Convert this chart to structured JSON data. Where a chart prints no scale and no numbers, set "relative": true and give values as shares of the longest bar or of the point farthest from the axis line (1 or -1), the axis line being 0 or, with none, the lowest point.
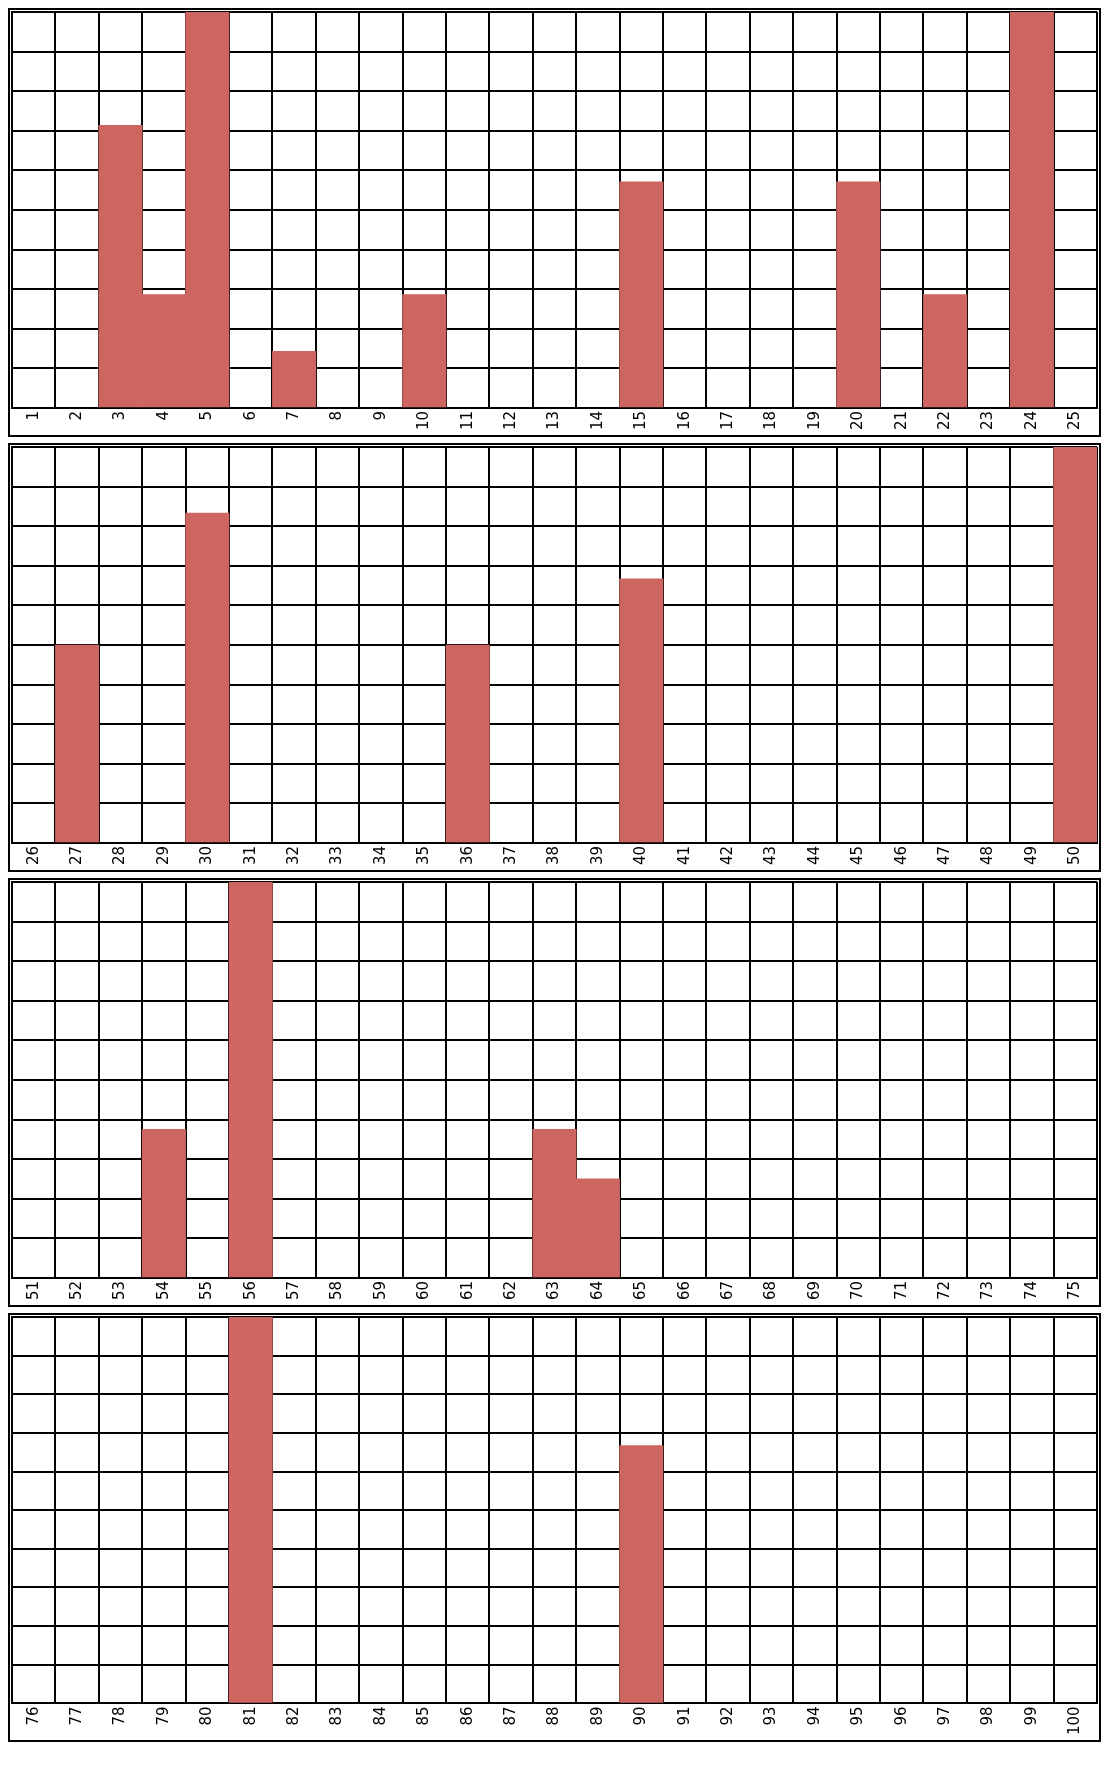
{
  "chart_data": [
    {
      "type": "bar",
      "relative": true,
      "grid": true,
      "legend": false,
      "categories": [
        "1",
        "2",
        "3",
        "4",
        "5",
        "6",
        "7",
        "8",
        "9",
        "10",
        "11",
        "12",
        "13",
        "14",
        "15",
        "16",
        "17",
        "18",
        "19",
        "20",
        "21",
        "22",
        "23",
        "24",
        "25"
      ],
      "series": [
        {
          "color": "#cd6660",
          "values": [
            null,
            null,
            0.714,
            0.286,
            1,
            null,
            0.143,
            null,
            null,
            0.286,
            null,
            null,
            null,
            null,
            0.571,
            null,
            null,
            null,
            null,
            0.571,
            null,
            0.286,
            null,
            1,
            null
          ]
        }
      ]
    },
    {
      "type": "bar",
      "relative": true,
      "grid": true,
      "legend": false,
      "categories": [
        "26",
        "27",
        "28",
        "29",
        "30",
        "31",
        "32",
        "33",
        "34",
        "35",
        "36",
        "37",
        "38",
        "39",
        "40",
        "41",
        "42",
        "43",
        "44",
        "45",
        "46",
        "47",
        "48",
        "49",
        "50"
      ],
      "series": [
        {
          "color": "#cd6660",
          "values": [
            null,
            0.5,
            null,
            null,
            0.833,
            null,
            null,
            null,
            null,
            null,
            0.5,
            null,
            null,
            null,
            0.667,
            null,
            null,
            null,
            null,
            null,
            null,
            null,
            null,
            null,
            1
          ]
        }
      ]
    },
    {
      "type": "bar",
      "relative": true,
      "grid": true,
      "legend": false,
      "categories": [
        "51",
        "52",
        "53",
        "54",
        "55",
        "56",
        "57",
        "58",
        "59",
        "60",
        "61",
        "62",
        "63",
        "64",
        "65",
        "66",
        "67",
        "68",
        "69",
        "70",
        "71",
        "72",
        "73",
        "74",
        "75"
      ],
      "series": [
        {
          "color": "#cd6660",
          "values": [
            null,
            null,
            null,
            0.375,
            null,
            1,
            null,
            null,
            null,
            null,
            null,
            null,
            0.375,
            0.25,
            null,
            null,
            null,
            null,
            null,
            null,
            null,
            null,
            null,
            null,
            null
          ]
        }
      ]
    },
    {
      "type": "bar",
      "relative": true,
      "grid": true,
      "legend": false,
      "categories": [
        "76",
        "77",
        "78",
        "79",
        "80",
        "81",
        "82",
        "83",
        "84",
        "85",
        "86",
        "87",
        "88",
        "89",
        "90",
        "91",
        "92",
        "93",
        "94",
        "95",
        "96",
        "97",
        "98",
        "99",
        "100"
      ],
      "series": [
        {
          "color": "#cd6660",
          "values": [
            null,
            null,
            null,
            null,
            null,
            1,
            null,
            null,
            null,
            null,
            null,
            null,
            null,
            null,
            0.667,
            null,
            null,
            null,
            null,
            null,
            null,
            null,
            null,
            null,
            null
          ]
        }
      ]
    }
  ]
}
